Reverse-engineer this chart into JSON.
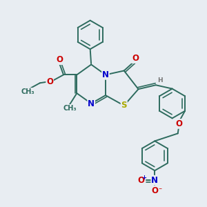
{
  "bg_color": "#e8edf2",
  "bond_color": "#2d6b5e",
  "bond_width": 1.4,
  "dbl_sep": 0.09,
  "atom_colors": {
    "O": "#cc0000",
    "N": "#0000cc",
    "S": "#aaaa00",
    "H": "#777777",
    "C": "#2d6b5e"
  },
  "fs": 8.5,
  "fs_small": 6.5
}
